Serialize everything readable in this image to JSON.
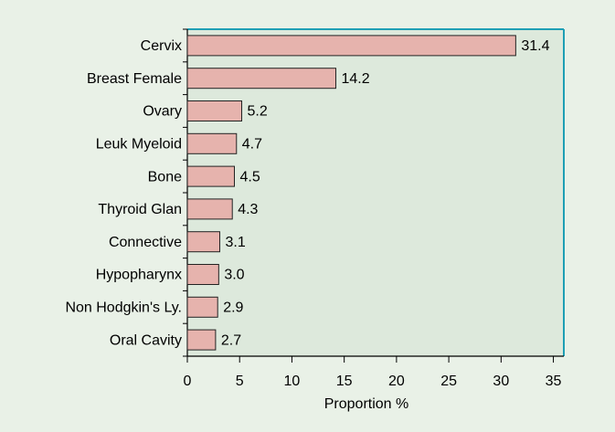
{
  "chart_data": {
    "type": "bar",
    "orientation": "horizontal",
    "categories": [
      "Cervix",
      "Breast Female",
      "Ovary",
      "Leuk Myeloid",
      "Bone",
      "Thyroid Glan",
      "Connective",
      "Hypopharynx",
      "Non Hodgkin's Ly.",
      "Oral Cavity"
    ],
    "values": [
      31.4,
      14.2,
      5.2,
      4.7,
      4.5,
      4.3,
      3.1,
      3.0,
      2.9,
      2.7
    ],
    "value_labels": [
      "31.4",
      "14.2",
      "5.2",
      "4.7",
      "4.5",
      "4.3",
      "3.1",
      "3.0",
      "2.9",
      "2.7"
    ],
    "color": "#e6b3ad",
    "xlabel": "Proportion %",
    "xlim": [
      0,
      36
    ],
    "xticks": [
      0,
      5,
      10,
      15,
      20,
      25,
      30,
      35
    ],
    "grid": false
  }
}
